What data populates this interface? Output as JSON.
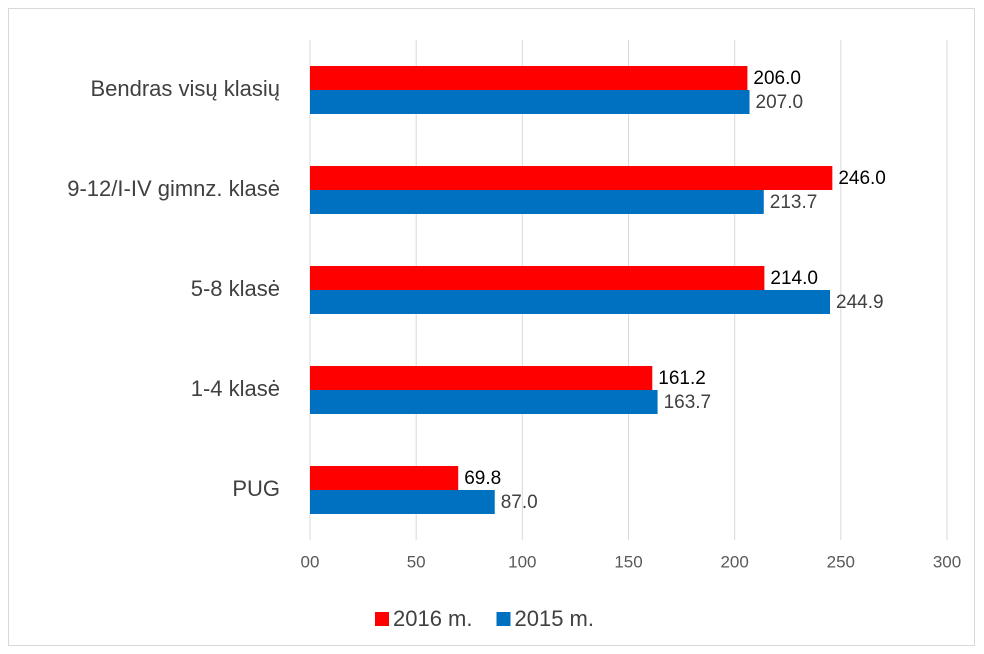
{
  "chart_data": {
    "type": "hbar",
    "categories": [
      "Bendras visų klasių",
      "9-12/I-IV gimnz. klasė",
      "5-8 klasė",
      "1-4 klasė",
      "PUG"
    ],
    "series": [
      {
        "name": "2016 m.",
        "color": "#ff0000",
        "values": [
          206.0,
          246.0,
          214.0,
          161.2,
          69.8
        ],
        "value_labels": [
          "206.0",
          "246.0",
          "214.0",
          "161.2",
          "69.8"
        ]
      },
      {
        "name": "2015 m.",
        "color": "#0070c0",
        "values": [
          207.0,
          213.7,
          244.9,
          163.7,
          87.0
        ],
        "value_labels": [
          "207.0",
          "213.7",
          "244.9",
          "163.7",
          "87.0"
        ]
      }
    ],
    "xlim": [
      0,
      300
    ],
    "xticks": [
      {
        "value": 0,
        "label": "00"
      },
      50,
      100,
      150,
      200,
      250,
      300
    ],
    "grid": true,
    "legend": "bottom"
  }
}
